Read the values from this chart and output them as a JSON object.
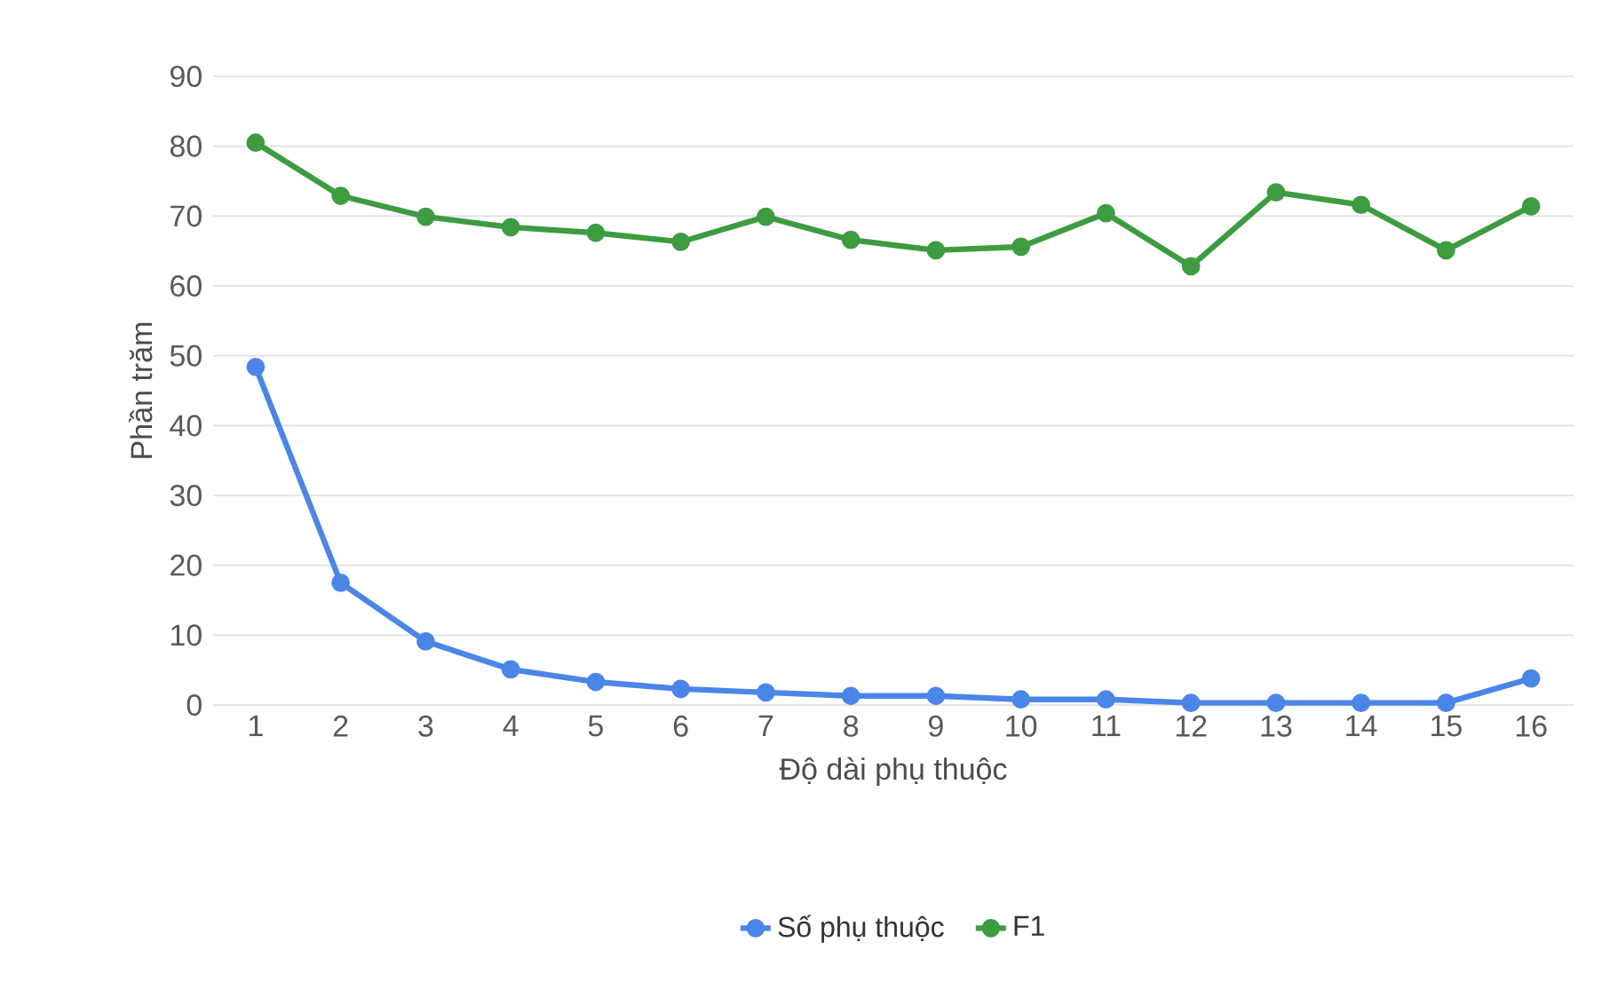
{
  "chart_data": {
    "type": "line",
    "xlabel": "Độ dài phụ thuộc",
    "ylabel": "Phần trăm",
    "categories": [
      "1",
      "2",
      "3",
      "4",
      "5",
      "6",
      "7",
      "8",
      "9",
      "10",
      "11",
      "12",
      "13",
      "14",
      "15",
      "16"
    ],
    "series": [
      {
        "name": "Số phụ thuộc",
        "color": "#4a86e8",
        "values": [
          48.4,
          17.5,
          9.1,
          5.1,
          3.3,
          2.3,
          1.8,
          1.3,
          1.3,
          0.8,
          0.8,
          0.3,
          0.3,
          0.3,
          0.3,
          3.8
        ]
      },
      {
        "name": "F1",
        "color": "#3d9c40",
        "values": [
          80.5,
          72.9,
          69.9,
          68.4,
          67.6,
          66.3,
          69.9,
          66.6,
          65.1,
          65.6,
          70.4,
          62.8,
          73.4,
          71.6,
          65.1,
          71.4
        ]
      }
    ],
    "ylim": [
      0,
      90
    ],
    "yticks": [
      0,
      10,
      20,
      30,
      40,
      50,
      60,
      70,
      80,
      90
    ],
    "grid": "y",
    "legend": "bottom",
    "marker": "circle",
    "line_style": "solid"
  }
}
